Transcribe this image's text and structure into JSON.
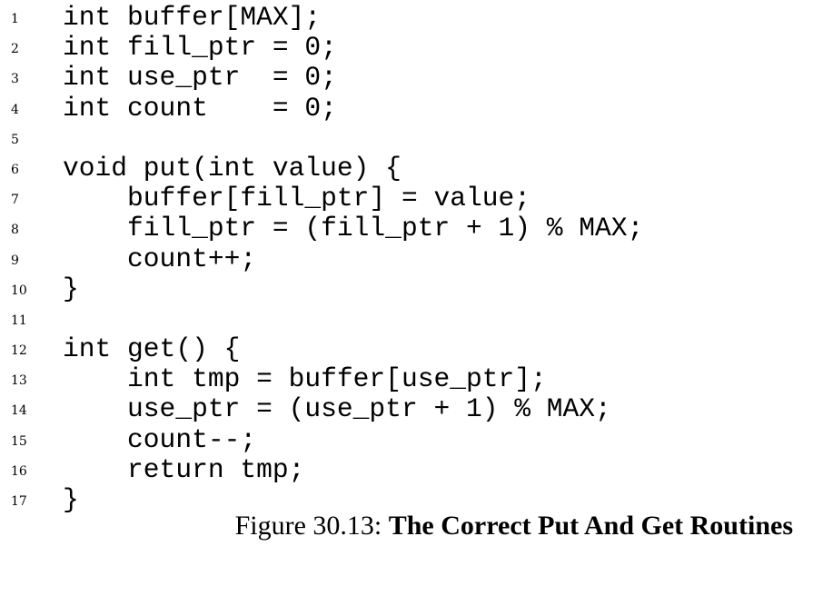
{
  "code": {
    "lines": [
      {
        "number": "1",
        "text": "int buffer[MAX];"
      },
      {
        "number": "2",
        "text": "int fill_ptr = 0;"
      },
      {
        "number": "3",
        "text": "int use_ptr  = 0;"
      },
      {
        "number": "4",
        "text": "int count    = 0;"
      },
      {
        "number": "5",
        "text": ""
      },
      {
        "number": "6",
        "text": "void put(int value) {"
      },
      {
        "number": "7",
        "text": "    buffer[fill_ptr] = value;"
      },
      {
        "number": "8",
        "text": "    fill_ptr = (fill_ptr + 1) % MAX;"
      },
      {
        "number": "9",
        "text": "    count++;"
      },
      {
        "number": "10",
        "text": "}"
      },
      {
        "number": "11",
        "text": ""
      },
      {
        "number": "12",
        "text": "int get() {"
      },
      {
        "number": "13",
        "text": "    int tmp = buffer[use_ptr];"
      },
      {
        "number": "14",
        "text": "    use_ptr = (use_ptr + 1) % MAX;"
      },
      {
        "number": "15",
        "text": "    count--;"
      },
      {
        "number": "16",
        "text": "    return tmp;"
      },
      {
        "number": "17",
        "text": "}"
      }
    ]
  },
  "caption": {
    "label": "Figure 30.13: ",
    "title": "The Correct Put And Get Routines"
  }
}
